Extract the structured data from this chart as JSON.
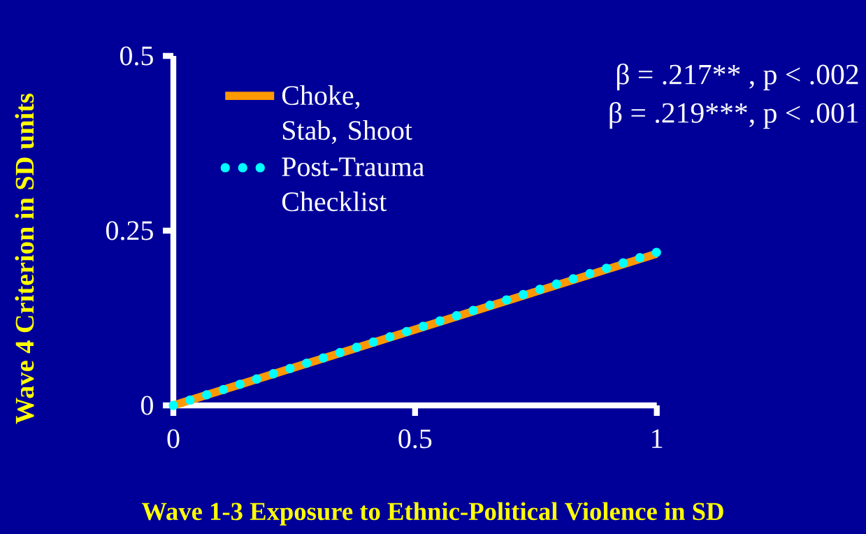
{
  "chart_data": {
    "type": "line",
    "xlabel": "Wave 1-3 Exposure to Ethnic-Political Violence in SD",
    "ylabel": "Wave 4 Criterion in SD units",
    "x": [
      0,
      1
    ],
    "series": [
      {
        "name": "Choke, Stab, Shoot",
        "color": "#ff9900",
        "line_style": "solid",
        "values": [
          0,
          0.217
        ]
      },
      {
        "name": "Post-Trauma Checklist",
        "color": "#00ffff",
        "line_style": "dotted",
        "values": [
          0,
          0.219
        ]
      }
    ],
    "xlim": [
      0,
      1
    ],
    "ylim": [
      0,
      0.5
    ],
    "xticks": [
      0,
      0.5,
      1
    ],
    "yticks": [
      0,
      0.25,
      0.5
    ],
    "legend": "top left",
    "grid": false,
    "marker": "none",
    "annotations": [
      "β = .217**  , p < .002",
      "β = .219***, p < .001"
    ]
  }
}
